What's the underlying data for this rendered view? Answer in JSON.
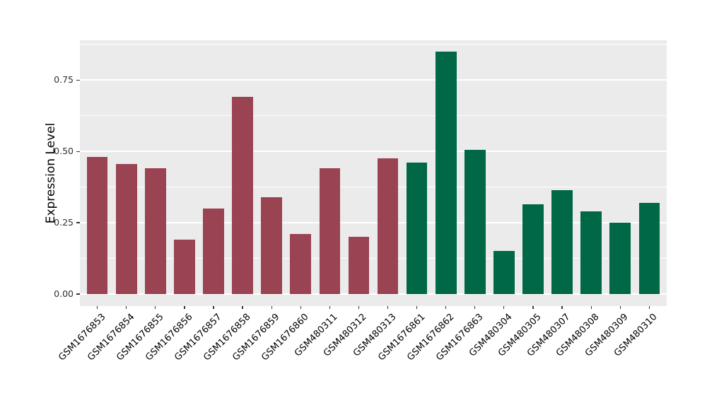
{
  "chart_data": {
    "type": "bar",
    "title": "",
    "xlabel": "",
    "ylabel": "Expression Level",
    "categories": [
      "GSM1676853",
      "GSM1676854",
      "GSM1676855",
      "GSM1676856",
      "GSM1676857",
      "GSM1676858",
      "GSM1676859",
      "GSM1676860",
      "GSM480311",
      "GSM480312",
      "GSM480313",
      "GSM1676861",
      "GSM1676862",
      "GSM1676863",
      "GSM480304",
      "GSM480305",
      "GSM480307",
      "GSM480308",
      "GSM480309",
      "GSM480310"
    ],
    "values": [
      0.48,
      0.455,
      0.44,
      0.19,
      0.3,
      0.69,
      0.34,
      0.21,
      0.44,
      0.2,
      0.475,
      0.46,
      0.85,
      0.505,
      0.15,
      0.315,
      0.365,
      0.29,
      0.25,
      0.32
    ],
    "bar_colors": [
      "#9A4352",
      "#9A4352",
      "#9A4352",
      "#9A4352",
      "#9A4352",
      "#9A4352",
      "#9A4352",
      "#9A4352",
      "#9A4352",
      "#9A4352",
      "#9A4352",
      "#006847",
      "#006847",
      "#006847",
      "#006847",
      "#006847",
      "#006847",
      "#006847",
      "#006847",
      "#006847"
    ],
    "yticks": {
      "labels": [
        "0.00",
        "0.25",
        "0.50",
        "0.75"
      ],
      "values": [
        0,
        0.25,
        0.5,
        0.75
      ]
    },
    "minor_gridlines": [
      0.125,
      0.375,
      0.625,
      0.875
    ],
    "ylim": [
      -0.042,
      0.889
    ],
    "grid": true,
    "legend": "none",
    "panel_background": "#EBEBEB",
    "gridline_color": "#FFFFFF"
  }
}
